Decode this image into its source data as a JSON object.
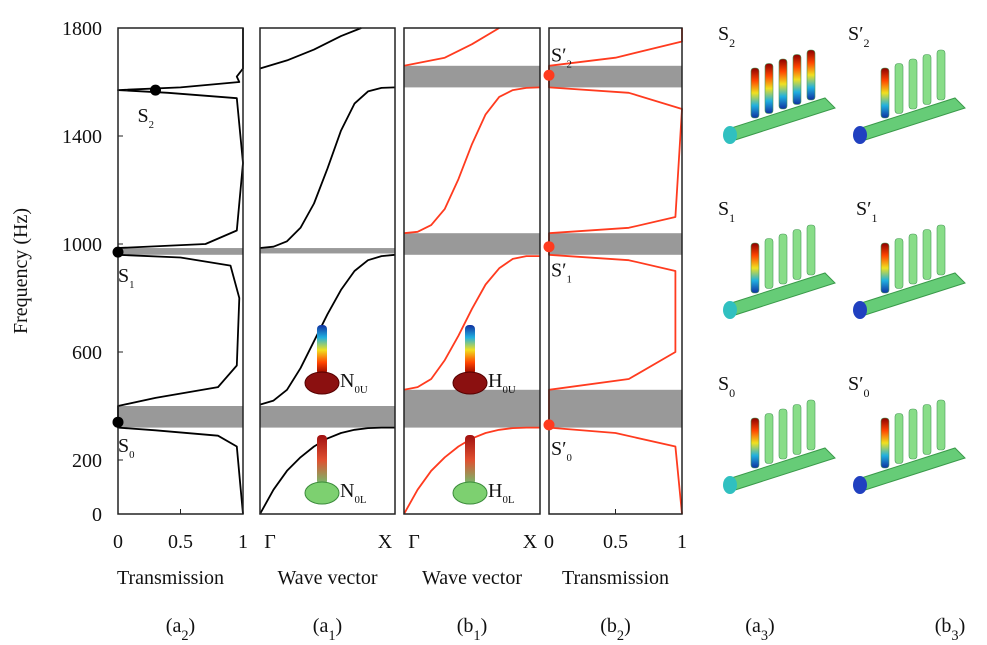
{
  "chart_data": [
    {
      "type": "transmission",
      "xlabel": "Transmission",
      "ylabel": "Frequency (Hz)",
      "panel": {
        "base": "(a",
        "sub": "2",
        "end": ")"
      },
      "xlim": [
        0,
        1
      ],
      "xticks": [
        0,
        0.5,
        1
      ],
      "ylim": [
        0,
        1800
      ],
      "yticks": [
        0,
        200,
        600,
        1000,
        1400,
        1800
      ],
      "gaps": [
        [
          320,
          400
        ],
        [
          960,
          985
        ]
      ],
      "series": [
        {
          "color": "#000000",
          "x": [
            1,
            0.98,
            0.95,
            0.8,
            0.3,
            0,
            0,
            0.3,
            0.8,
            0.95,
            0.97,
            0.9,
            0.5,
            0,
            0,
            0.7,
            0.95,
            1,
            0.95,
            0.4,
            0,
            0.5,
            0.97,
            0.95,
            1,
            1
          ],
          "y": [
            0,
            100,
            250,
            290,
            310,
            320,
            400,
            430,
            470,
            550,
            800,
            920,
            950,
            960,
            985,
            1000,
            1050,
            1300,
            1540,
            1560,
            1570,
            1580,
            1600,
            1620,
            1650,
            1800
          ]
        }
      ],
      "points": [
        {
          "x": 0,
          "y": 340,
          "color": "#000000",
          "label": {
            "base": "S",
            "sub": "0"
          }
        },
        {
          "x": 0,
          "y": 970,
          "color": "#000000",
          "label": {
            "base": "S",
            "sub": "1"
          }
        },
        {
          "x": 0.3,
          "y": 1570,
          "color": "#000000",
          "label": {
            "base": "S",
            "sub": "2"
          }
        }
      ]
    },
    {
      "type": "band",
      "xlabel": "Wave vector",
      "panel": {
        "base": "(a",
        "sub": "1",
        "end": ")"
      },
      "xlim": [
        0,
        1
      ],
      "xticks": [
        {
          "value": 0,
          "label": "Γ"
        },
        {
          "value": 1,
          "label": "X"
        }
      ],
      "ylim": [
        0,
        1800
      ],
      "gaps": [
        [
          320,
          400
        ],
        [
          965,
          985
        ]
      ],
      "series": [
        {
          "color": "#000000",
          "x": [
            0,
            0.1,
            0.2,
            0.3,
            0.4,
            0.5,
            0.6,
            0.7,
            0.8,
            0.9,
            1
          ],
          "y": [
            0,
            90,
            160,
            210,
            250,
            280,
            300,
            312,
            318,
            320,
            320
          ]
        },
        {
          "color": "#000000",
          "x": [
            0,
            0.1,
            0.2,
            0.3,
            0.4,
            0.5,
            0.6,
            0.7,
            0.8,
            0.9,
            1
          ],
          "y": [
            405,
            420,
            460,
            540,
            640,
            740,
            830,
            900,
            940,
            955,
            960
          ]
        },
        {
          "color": "#000000",
          "x": [
            0,
            0.1,
            0.2,
            0.3,
            0.4,
            0.5,
            0.6,
            0.7,
            0.8,
            0.9,
            1
          ],
          "y": [
            985,
            990,
            1010,
            1060,
            1150,
            1280,
            1420,
            1520,
            1565,
            1578,
            1580
          ]
        },
        {
          "color": "#000000",
          "x": [
            0,
            0.2,
            0.4,
            0.6,
            0.75
          ],
          "y": [
            1650,
            1680,
            1720,
            1770,
            1800
          ]
        }
      ],
      "insets": [
        {
          "base": "N",
          "sub": "0U"
        },
        {
          "base": "N",
          "sub": "0L"
        }
      ]
    },
    {
      "type": "band",
      "xlabel": "Wave vector",
      "panel": {
        "base": "(b",
        "sub": "1",
        "end": ")"
      },
      "xlim": [
        0,
        1
      ],
      "xticks": [
        {
          "value": 0,
          "label": "Γ"
        },
        {
          "value": 1,
          "label": "X"
        }
      ],
      "ylim": [
        0,
        1800
      ],
      "gaps": [
        [
          320,
          460
        ],
        [
          960,
          1040
        ],
        [
          1580,
          1660
        ]
      ],
      "series": [
        {
          "color": "#ff3b1f",
          "x": [
            0,
            0.1,
            0.2,
            0.3,
            0.4,
            0.5,
            0.6,
            0.7,
            0.8,
            0.9,
            1
          ],
          "y": [
            0,
            90,
            160,
            210,
            250,
            280,
            300,
            312,
            318,
            320,
            320
          ]
        },
        {
          "color": "#ff3b1f",
          "x": [
            0,
            0.1,
            0.2,
            0.3,
            0.4,
            0.5,
            0.6,
            0.7,
            0.8,
            0.9,
            1
          ],
          "y": [
            460,
            470,
            500,
            570,
            660,
            760,
            850,
            910,
            945,
            955,
            955
          ]
        },
        {
          "color": "#ff3b1f",
          "x": [
            0,
            0.1,
            0.2,
            0.3,
            0.4,
            0.5,
            0.6,
            0.7,
            0.8,
            0.9,
            1
          ],
          "y": [
            1040,
            1045,
            1070,
            1130,
            1240,
            1370,
            1480,
            1545,
            1570,
            1578,
            1580
          ]
        },
        {
          "color": "#ff3b1f",
          "x": [
            0,
            0.3,
            0.5,
            0.7
          ],
          "y": [
            1660,
            1690,
            1740,
            1800
          ]
        }
      ],
      "insets": [
        {
          "base": "H",
          "sub": "0U"
        },
        {
          "base": "H",
          "sub": "0L"
        }
      ]
    },
    {
      "type": "transmission",
      "xlabel": "Transmission",
      "panel": {
        "base": "(b",
        "sub": "2",
        "end": ")"
      },
      "xlim": [
        0,
        1
      ],
      "xticks": [
        0,
        0.5,
        1
      ],
      "ylim": [
        0,
        1800
      ],
      "gaps": [
        [
          320,
          460
        ],
        [
          960,
          1040
        ],
        [
          1580,
          1660
        ]
      ],
      "series": [
        {
          "color": "#ff3b1f",
          "x": [
            1,
            0.95,
            0.5,
            0,
            0,
            0.6,
            0.95,
            0.95,
            0.6,
            0,
            0,
            0.6,
            0.95,
            1,
            0.6,
            0,
            0,
            0.5,
            1,
            1
          ],
          "y": [
            0,
            250,
            300,
            320,
            460,
            500,
            600,
            900,
            940,
            960,
            1040,
            1060,
            1100,
            1500,
            1560,
            1580,
            1660,
            1690,
            1750,
            1800
          ]
        }
      ],
      "points": [
        {
          "x": 0,
          "y": 330,
          "color": "#ff3b1f",
          "label": {
            "base": "S′",
            "sub": "0"
          }
        },
        {
          "x": 0,
          "y": 990,
          "color": "#ff3b1f",
          "label": {
            "base": "S′",
            "sub": "1"
          }
        },
        {
          "x": 0,
          "y": 1625,
          "color": "#ff3b1f",
          "label": {
            "base": "S′",
            "sub": "2"
          }
        }
      ]
    }
  ],
  "modes": {
    "panels": [
      {
        "base": "(a",
        "sub": "3",
        "end": ")"
      },
      {
        "base": "(b",
        "sub": "3",
        "end": ")"
      }
    ],
    "labels": [
      [
        {
          "base": "S",
          "sub": "2"
        },
        {
          "base": "S′",
          "sub": "2"
        }
      ],
      [
        {
          "base": "S",
          "sub": "1"
        },
        {
          "base": "S′",
          "sub": "1"
        }
      ],
      [
        {
          "base": "S",
          "sub": "0"
        },
        {
          "base": "S′",
          "sub": "0"
        }
      ]
    ]
  }
}
